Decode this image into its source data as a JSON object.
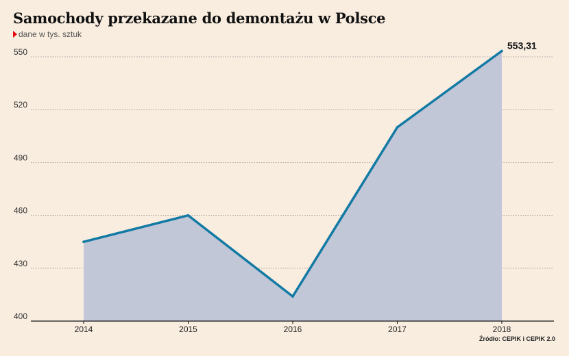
{
  "chart_data": {
    "type": "area",
    "title": "Samochody przekazane do demontażu w Polsce",
    "subtitle": "dane w tys. sztuk",
    "categories": [
      "2014",
      "2015",
      "2016",
      "2017",
      "2018"
    ],
    "values": [
      445,
      460,
      414,
      510,
      553.31
    ],
    "ylim": [
      400,
      550
    ],
    "yticks": [
      400,
      430,
      460,
      490,
      520,
      550
    ],
    "data_label": "553,31",
    "grid": true,
    "source": "Źródło: CEPIK i CEPIK 2.0",
    "colors": {
      "line": "#137aa4",
      "fill": "#c2c7d8",
      "grid": "#8a8a8a",
      "axis": "#111111"
    }
  }
}
